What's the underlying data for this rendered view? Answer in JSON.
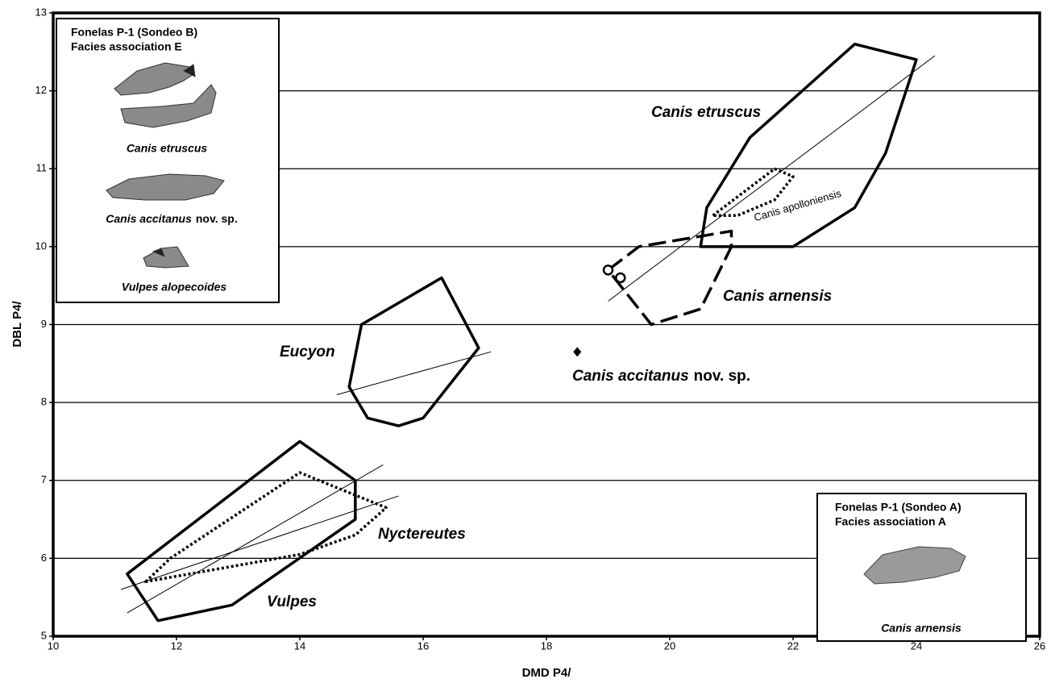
{
  "chart_data": {
    "type": "scatter",
    "x_label": "DMD P4/",
    "y_label": "DBL P4/",
    "xlim": [
      10,
      26
    ],
    "xticks": [
      10,
      12,
      14,
      16,
      18,
      20,
      22,
      24,
      26
    ],
    "ylim": [
      5,
      13
    ],
    "yticks": [
      5,
      6,
      7,
      8,
      9,
      10,
      11,
      12,
      13
    ],
    "grid": "y",
    "color": "#000000",
    "series": [
      {
        "name": "Canis etruscus",
        "shape": "polygon",
        "dash": "solid",
        "x": [
          20.5,
          20.6,
          21.3,
          23.0,
          24.0,
          23.5,
          23.0,
          22.0
        ],
        "y": [
          10.0,
          10.5,
          11.4,
          12.6,
          12.4,
          11.2,
          10.5,
          10.0
        ]
      },
      {
        "name": "Canis apolloniensis",
        "shape": "polygon",
        "dash": "dotted",
        "x": [
          20.7,
          21.7,
          22.0,
          21.7,
          21.1
        ],
        "y": [
          10.4,
          11.0,
          10.9,
          10.6,
          10.4
        ]
      },
      {
        "name": "Canis arnensis",
        "shape": "polygon",
        "dash": "dashed",
        "x": [
          19.0,
          19.5,
          21.0,
          21.0,
          20.5,
          19.7
        ],
        "y": [
          9.7,
          10.0,
          10.2,
          10.0,
          9.2,
          9.0
        ]
      },
      {
        "name": "Eucyon",
        "shape": "polygon",
        "dash": "solid",
        "x": [
          14.8,
          15.0,
          16.3,
          16.9,
          16.0,
          15.6,
          15.1
        ],
        "y": [
          8.2,
          9.0,
          9.6,
          8.7,
          7.8,
          7.7,
          7.8
        ]
      },
      {
        "name": "Vulpes",
        "shape": "polygon",
        "dash": "solid",
        "x": [
          11.2,
          14.0,
          14.9,
          14.9,
          12.9,
          11.7
        ],
        "y": [
          5.8,
          7.5,
          7.0,
          6.5,
          5.4,
          5.2
        ]
      },
      {
        "name": "Nyctereutes",
        "shape": "polygon",
        "dash": "dotted",
        "x": [
          11.5,
          11.9,
          14.0,
          15.4,
          14.9,
          14.0
        ],
        "y": [
          5.7,
          6.0,
          7.1,
          6.65,
          6.3,
          6.05
        ]
      },
      {
        "name": "Canis accitanus",
        "qualifier": "nov. sp.",
        "shape": "diamond",
        "x": [
          18.5
        ],
        "y": [
          8.65
        ]
      },
      {
        "shape": "circle",
        "x": [
          19.0,
          19.2
        ],
        "y": [
          9.7,
          9.6
        ]
      },
      {
        "shape": "line",
        "x": [
          19.0,
          24.3
        ],
        "y": [
          9.3,
          12.45
        ]
      },
      {
        "shape": "line",
        "x": [
          14.6,
          17.1
        ],
        "y": [
          8.1,
          8.65
        ]
      },
      {
        "shape": "line",
        "x": [
          11.1,
          15.6
        ],
        "y": [
          5.6,
          6.8
        ]
      },
      {
        "shape": "line",
        "x": [
          11.2,
          15.35
        ],
        "y": [
          5.3,
          7.2
        ]
      }
    ],
    "insets": [
      {
        "title": [
          "Fonelas P-1 (Sondeo B)",
          "Facies association E"
        ],
        "items": [
          {
            "caption": "Canis etruscus"
          },
          {
            "caption": "Canis accitanus",
            "qualifier": "nov. sp."
          },
          {
            "caption": "Vulpes alopecoides"
          }
        ]
      },
      {
        "title": [
          "Fonelas P-1 (Sondeo A)",
          "Facies association A"
        ],
        "items": [
          {
            "caption": "Canis arnensis"
          }
        ]
      }
    ]
  }
}
